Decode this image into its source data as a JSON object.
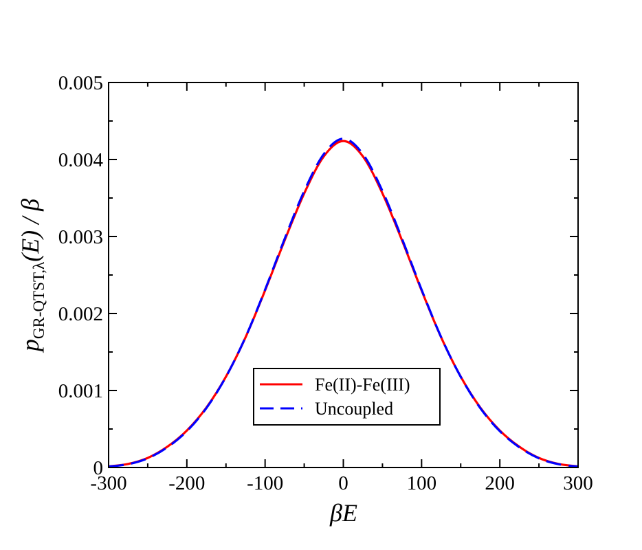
{
  "chart_data": {
    "type": "line",
    "title": "",
    "xlabel": {
      "main": "βE"
    },
    "ylabel": {
      "main": "p",
      "subscript": "GR-QTST,λ",
      "rest": "(E) / β"
    },
    "xlim": [
      -300,
      300
    ],
    "ylim": [
      0,
      0.005
    ],
    "x_ticks": [
      -300,
      -200,
      -100,
      0,
      100,
      200,
      300
    ],
    "x_tick_labels": [
      "-300",
      "-200",
      "-100",
      "0",
      "100",
      "200",
      "300"
    ],
    "y_ticks": [
      0,
      0.001,
      0.002,
      0.003,
      0.004,
      0.005
    ],
    "y_tick_labels": [
      "0",
      "0.001",
      "0.002",
      "0.003",
      "0.004",
      "0.005"
    ],
    "grid": false,
    "legend_position": "bottom-center",
    "series": [
      {
        "name": "Fe(II)-Fe(III)",
        "color": "#ff0000",
        "style": "solid",
        "x": [
          -300,
          -275,
          -250,
          -225,
          -200,
          -175,
          -150,
          -125,
          -100,
          -75,
          -50,
          -25,
          0,
          25,
          50,
          75,
          100,
          125,
          150,
          175,
          200,
          225,
          250,
          275,
          300
        ],
        "y": [
          1.4e-05,
          4.6e-05,
          0.000124,
          0.000269,
          0.00048,
          0.000778,
          0.00118,
          0.00169,
          0.0023,
          0.00295,
          0.00356,
          0.00404,
          0.00424,
          0.00404,
          0.00356,
          0.00295,
          0.0023,
          0.00169,
          0.00118,
          0.000778,
          0.00048,
          0.000269,
          0.000124,
          4.6e-05,
          1.4e-05
        ]
      },
      {
        "name": "Uncoupled",
        "color": "#0000ff",
        "style": "dashed",
        "x": [
          -300,
          -275,
          -250,
          -225,
          -200,
          -175,
          -150,
          -125,
          -100,
          -75,
          -50,
          -25,
          0,
          25,
          50,
          75,
          100,
          125,
          150,
          175,
          200,
          225,
          250,
          275,
          300
        ],
        "y": [
          1.2e-05,
          4.3e-05,
          0.000119,
          0.000262,
          0.000472,
          0.000772,
          0.001178,
          0.001693,
          0.00231,
          0.00297,
          0.00359,
          0.00407,
          0.00427,
          0.00407,
          0.00359,
          0.00297,
          0.00231,
          0.001693,
          0.001178,
          0.000772,
          0.000472,
          0.000262,
          0.000119,
          4.3e-05,
          1.2e-05
        ]
      }
    ]
  }
}
